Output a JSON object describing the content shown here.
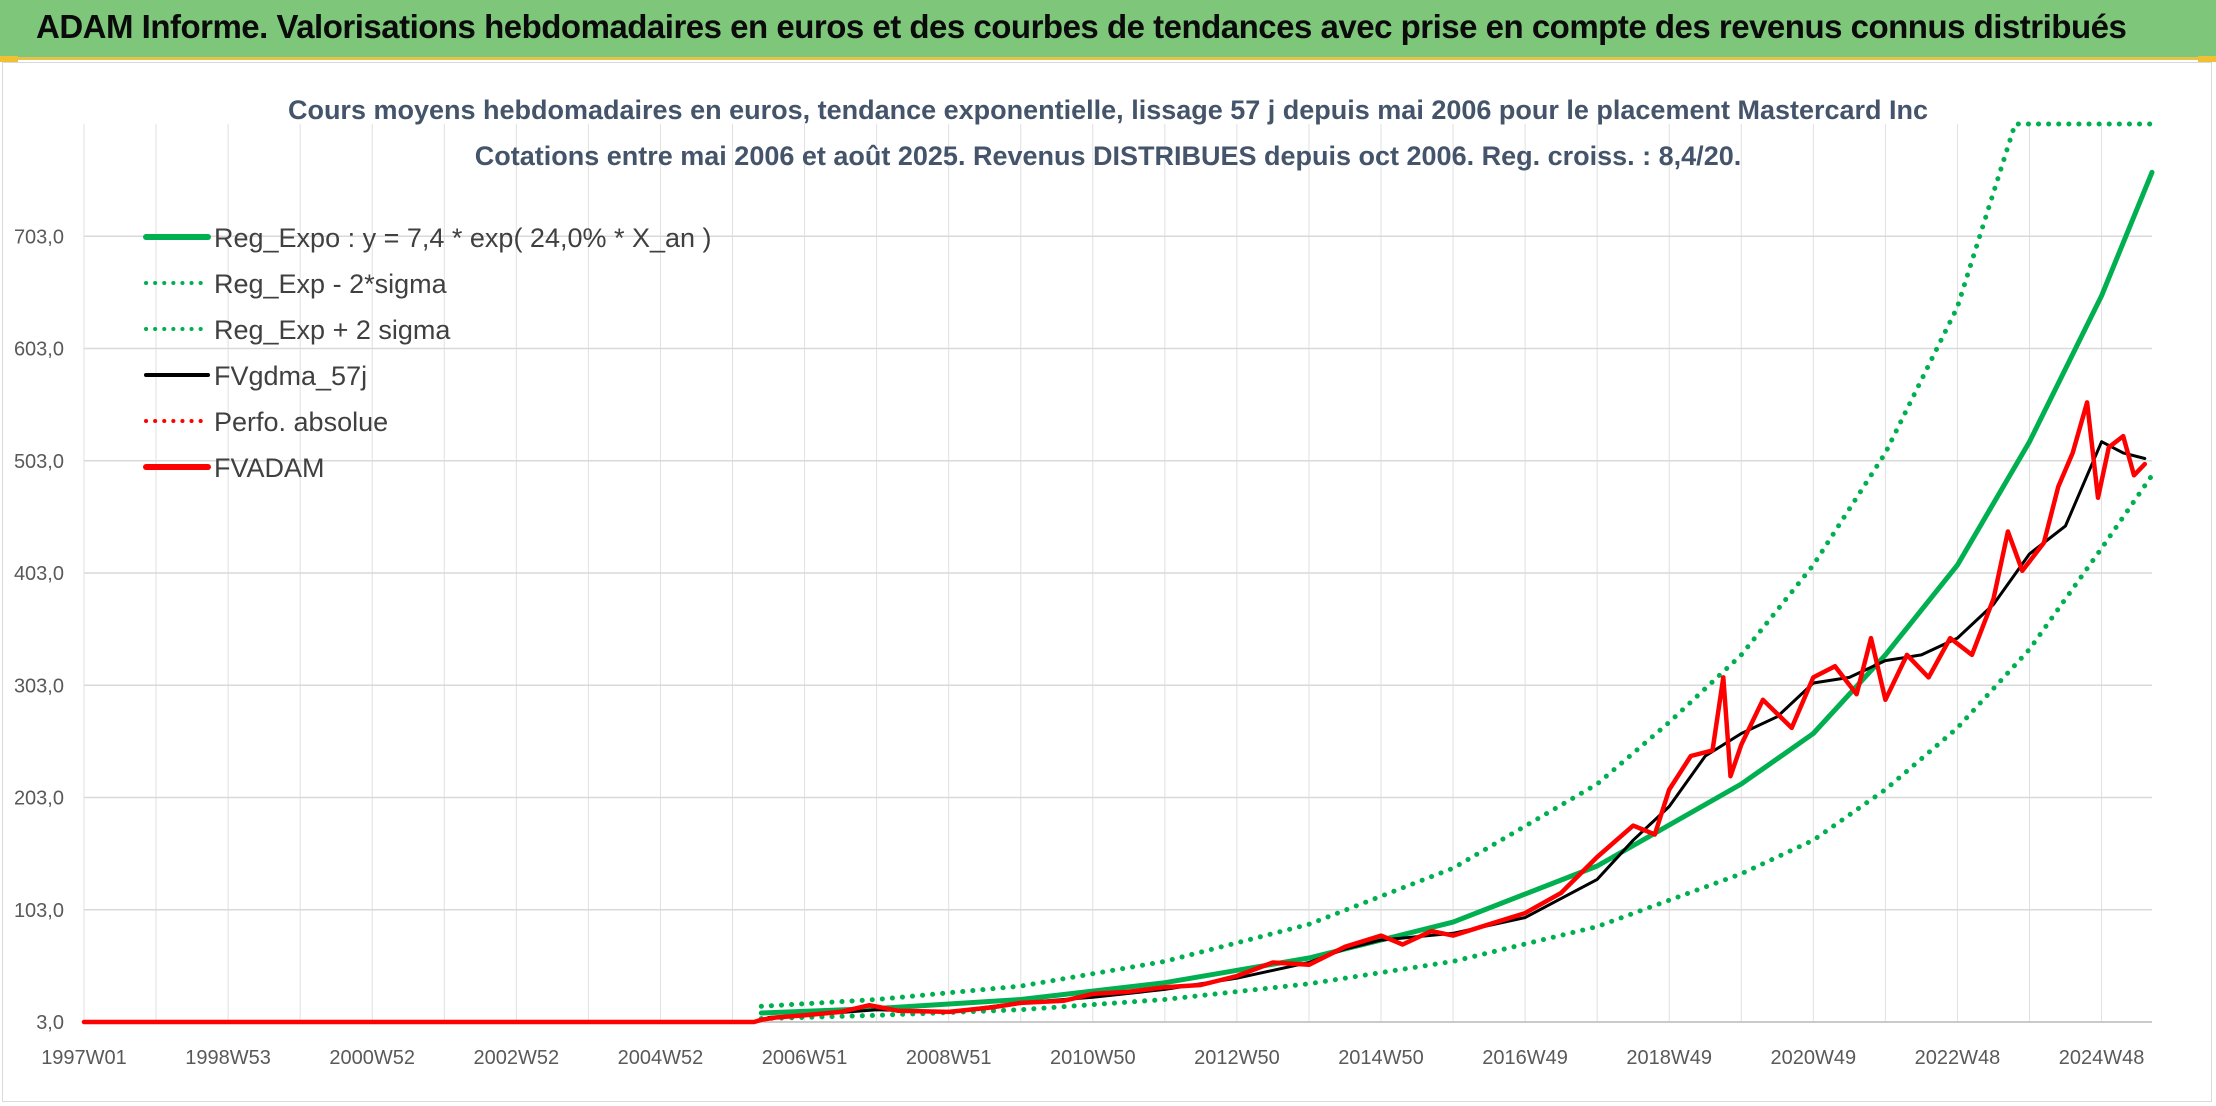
{
  "header": {
    "title": "ADAM Informe. Valorisations hebdomadaires en euros et des courbes de tendances avec prise en compte des revenus connus distribués"
  },
  "chart_data": {
    "type": "line",
    "title": "Cours moyens hebdomadaires en euros, tendance exponentielle, lissage 57 j depuis mai 2006 pour le placement Mastercard Inc",
    "subtitle": "Cotations entre mai 2006 et août 2025. Revenus DISTRIBUES depuis oct 2006. Reg. croiss. : 8,4/20.",
    "xlabel": "",
    "ylabel": "",
    "x_tick_labels": [
      "1997W01",
      "1998W53",
      "2000W52",
      "2002W52",
      "2004W52",
      "2006W51",
      "2008W51",
      "2010W50",
      "2012W50",
      "2014W50",
      "2016W49",
      "2018W49",
      "2020W49",
      "2022W48",
      "2024W48"
    ],
    "x_tick_years": [
      1997.0,
      1999.0,
      2001.0,
      2003.0,
      2005.0,
      2007.0,
      2009.0,
      2011.0,
      2013.0,
      2015.0,
      2017.0,
      2019.0,
      2021.0,
      2023.0,
      2025.0
    ],
    "xlim": [
      1997.0,
      2025.7
    ],
    "y_tick_labels": [
      "3,0",
      "103,0",
      "203,0",
      "303,0",
      "403,0",
      "503,0",
      "603,0",
      "703,0"
    ],
    "y_ticks": [
      3,
      103,
      203,
      303,
      403,
      503,
      603,
      703
    ],
    "ylim": [
      3,
      803
    ],
    "grid": true,
    "legend_position": "top-left",
    "series": [
      {
        "name": "Reg_Expo : y = 7,4 * exp( 24,0% *  X_an )",
        "color": "#00b050",
        "style": "solid",
        "points": [
          [
            2006.4,
            11
          ],
          [
            2008,
            15
          ],
          [
            2010,
            23
          ],
          [
            2012,
            38
          ],
          [
            2014,
            60
          ],
          [
            2016,
            92
          ],
          [
            2018,
            142
          ],
          [
            2020,
            215
          ],
          [
            2021,
            260
          ],
          [
            2022,
            330
          ],
          [
            2023,
            410
          ],
          [
            2024,
            520
          ],
          [
            2025,
            650
          ],
          [
            2025.7,
            760
          ]
        ]
      },
      {
        "name": "Reg_Exp - 2*sigma",
        "color": "#00b050",
        "style": "dotted",
        "points": [
          [
            2006.4,
            6
          ],
          [
            2008,
            9
          ],
          [
            2010,
            14
          ],
          [
            2012,
            23
          ],
          [
            2014,
            37
          ],
          [
            2016,
            57
          ],
          [
            2018,
            88
          ],
          [
            2020,
            135
          ],
          [
            2021,
            165
          ],
          [
            2022,
            210
          ],
          [
            2023,
            265
          ],
          [
            2024,
            335
          ],
          [
            2025,
            425
          ],
          [
            2025.7,
            490
          ]
        ]
      },
      {
        "name": "Reg_Exp + 2 sigma",
        "color": "#00b050",
        "style": "dotted",
        "points": [
          [
            2006.4,
            17
          ],
          [
            2008,
            23
          ],
          [
            2010,
            35
          ],
          [
            2012,
            57
          ],
          [
            2014,
            90
          ],
          [
            2016,
            140
          ],
          [
            2018,
            215
          ],
          [
            2019,
            270
          ],
          [
            2020,
            330
          ],
          [
            2021,
            410
          ],
          [
            2022,
            510
          ],
          [
            2023,
            640
          ],
          [
            2023.8,
            803
          ],
          [
            2025.7,
            803
          ]
        ]
      },
      {
        "name": "FVgdma_57j",
        "color": "#000000",
        "style": "solid",
        "points": [
          [
            2006.5,
            7
          ],
          [
            2007,
            9
          ],
          [
            2008,
            14
          ],
          [
            2009,
            12
          ],
          [
            2010,
            20
          ],
          [
            2011,
            25
          ],
          [
            2012,
            32
          ],
          [
            2013,
            42
          ],
          [
            2014,
            56
          ],
          [
            2014.5,
            68
          ],
          [
            2015,
            76
          ],
          [
            2016,
            82
          ],
          [
            2017,
            96
          ],
          [
            2018,
            130
          ],
          [
            2018.5,
            165
          ],
          [
            2019,
            195
          ],
          [
            2019.5,
            240
          ],
          [
            2020,
            260
          ],
          [
            2020.5,
            275
          ],
          [
            2021,
            305
          ],
          [
            2021.5,
            310
          ],
          [
            2022,
            325
          ],
          [
            2022.5,
            330
          ],
          [
            2023,
            345
          ],
          [
            2023.5,
            375
          ],
          [
            2024,
            420
          ],
          [
            2024.5,
            445
          ],
          [
            2025,
            520
          ],
          [
            2025.3,
            510
          ],
          [
            2025.6,
            505
          ]
        ]
      },
      {
        "name": "Perfo. absolue",
        "color": "#ff0000",
        "style": "dotted",
        "points": [
          [
            1997.0,
            3
          ],
          [
            2006.3,
            3
          ]
        ]
      },
      {
        "name": "FVADAM",
        "color": "#ff0000",
        "style": "solid",
        "points": [
          [
            1997.0,
            3
          ],
          [
            2006.3,
            3
          ],
          [
            2006.4,
            5
          ],
          [
            2006.6,
            7
          ],
          [
            2007,
            9
          ],
          [
            2007.5,
            12
          ],
          [
            2007.9,
            18
          ],
          [
            2008.3,
            13
          ],
          [
            2009,
            12
          ],
          [
            2009.6,
            16
          ],
          [
            2010,
            20
          ],
          [
            2010.6,
            22
          ],
          [
            2011,
            28
          ],
          [
            2011.5,
            30
          ],
          [
            2012,
            34
          ],
          [
            2012.5,
            36
          ],
          [
            2013,
            44
          ],
          [
            2013.5,
            56
          ],
          [
            2014,
            54
          ],
          [
            2014.5,
            70
          ],
          [
            2015,
            80
          ],
          [
            2015.3,
            72
          ],
          [
            2015.7,
            84
          ],
          [
            2016,
            80
          ],
          [
            2016.5,
            90
          ],
          [
            2017,
            100
          ],
          [
            2017.5,
            118
          ],
          [
            2018,
            150
          ],
          [
            2018.5,
            178
          ],
          [
            2018.8,
            170
          ],
          [
            2019,
            210
          ],
          [
            2019.3,
            240
          ],
          [
            2019.6,
            245
          ],
          [
            2019.75,
            310
          ],
          [
            2019.85,
            222
          ],
          [
            2020,
            250
          ],
          [
            2020.3,
            290
          ],
          [
            2020.7,
            265
          ],
          [
            2021,
            310
          ],
          [
            2021.3,
            320
          ],
          [
            2021.6,
            295
          ],
          [
            2021.8,
            345
          ],
          [
            2022,
            290
          ],
          [
            2022.3,
            330
          ],
          [
            2022.6,
            310
          ],
          [
            2022.9,
            345
          ],
          [
            2023.2,
            330
          ],
          [
            2023.5,
            380
          ],
          [
            2023.7,
            440
          ],
          [
            2023.9,
            405
          ],
          [
            2024.2,
            430
          ],
          [
            2024.4,
            480
          ],
          [
            2024.6,
            510
          ],
          [
            2024.8,
            555
          ],
          [
            2024.95,
            470
          ],
          [
            2025.1,
            515
          ],
          [
            2025.3,
            525
          ],
          [
            2025.45,
            490
          ],
          [
            2025.6,
            500
          ]
        ]
      }
    ]
  }
}
